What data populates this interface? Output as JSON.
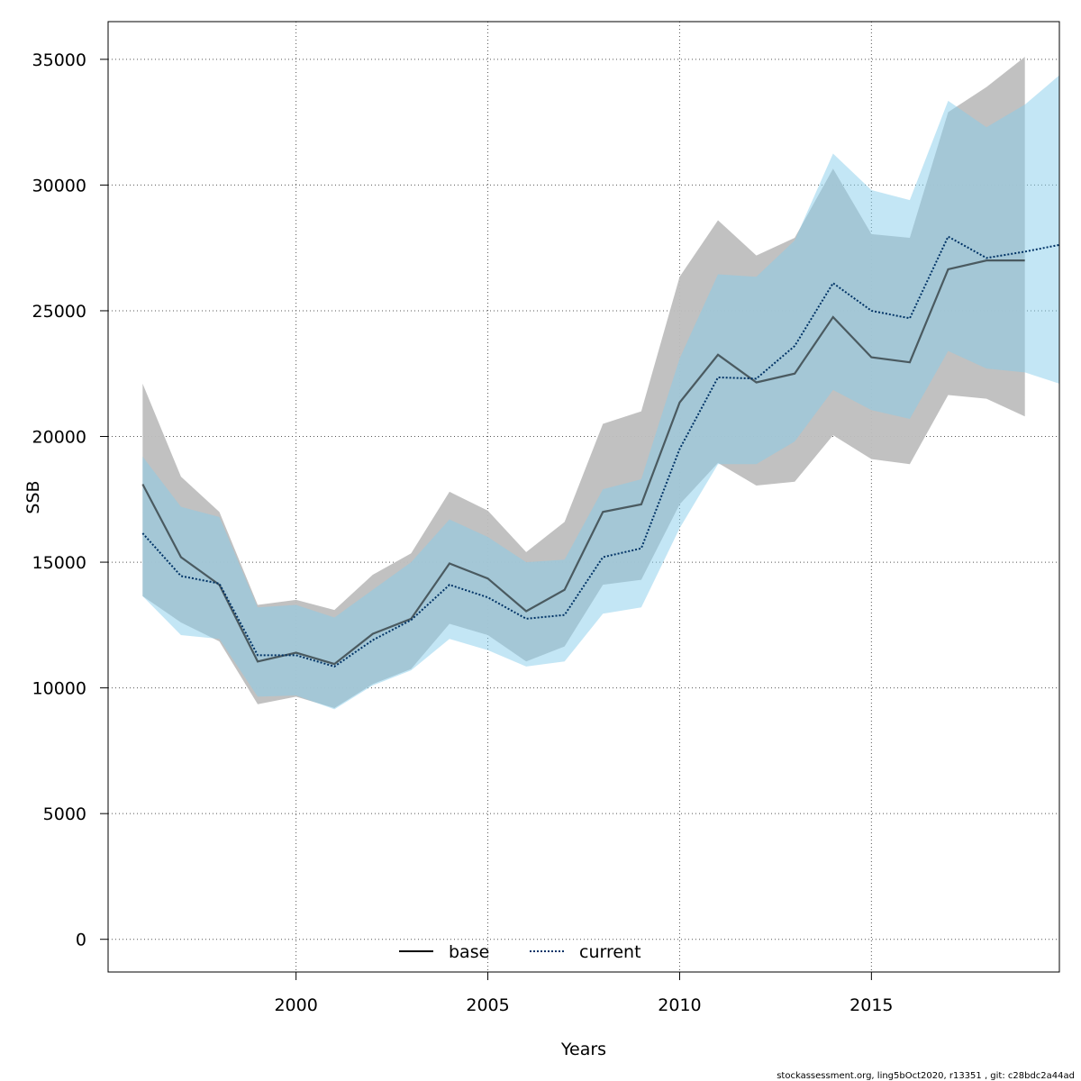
{
  "chart_data": {
    "type": "line",
    "xlabel": "Years",
    "ylabel": "SSB",
    "xlim": [
      1995.1,
      2019.9
    ],
    "ylim": [
      -1300,
      36500
    ],
    "x_ticks": [
      2000,
      2005,
      2010,
      2015
    ],
    "y_ticks": [
      0,
      5000,
      10000,
      15000,
      20000,
      25000,
      30000,
      35000
    ],
    "grid": true,
    "legend_position": "bottom-center",
    "series": [
      {
        "name": "base",
        "line_style": "solid",
        "line_color": "#000000",
        "band_color": "#bebebe",
        "x": [
          1996,
          1997,
          1998,
          1999,
          2000,
          2001,
          2002,
          2003,
          2004,
          2005,
          2006,
          2007,
          2008,
          2009,
          2010,
          2011,
          2012,
          2013,
          2014,
          2015,
          2016,
          2017,
          2018,
          2019
        ],
        "values": [
          18100,
          15200,
          14100,
          11050,
          11400,
          10950,
          12150,
          12750,
          14950,
          14350,
          13050,
          13900,
          17000,
          17300,
          21350,
          23250,
          22150,
          22500,
          24750,
          23150,
          22950,
          26650,
          27000,
          27000
        ],
        "lower": [
          13650,
          12600,
          11850,
          9350,
          9650,
          9200,
          10150,
          10750,
          12550,
          12100,
          11050,
          11650,
          14100,
          14300,
          17300,
          18950,
          18050,
          18200,
          20050,
          19100,
          18900,
          21650,
          21500,
          20800
        ],
        "upper": [
          22100,
          18400,
          17000,
          13300,
          13500,
          13100,
          14500,
          15350,
          17800,
          17050,
          15400,
          16600,
          20500,
          21000,
          26350,
          28600,
          27200,
          27900,
          30650,
          28050,
          27900,
          32900,
          33900,
          35100
        ]
      },
      {
        "name": "current",
        "line_style": "dotted",
        "line_color": "#003366",
        "band_color": "#87ceeb",
        "x": [
          1996,
          1997,
          1998,
          1999,
          2000,
          2001,
          2002,
          2003,
          2004,
          2005,
          2006,
          2007,
          2008,
          2009,
          2010,
          2011,
          2012,
          2013,
          2014,
          2015,
          2016,
          2017,
          2018,
          2019,
          2020
        ],
        "values": [
          16150,
          14450,
          14150,
          11300,
          11300,
          10850,
          11900,
          12700,
          14100,
          13600,
          12750,
          12900,
          15200,
          15550,
          19500,
          22350,
          22300,
          23600,
          26100,
          25000,
          24700,
          27950,
          27100,
          27350,
          27650
        ],
        "lower": [
          13650,
          12100,
          11950,
          9650,
          9700,
          9150,
          10100,
          10700,
          11950,
          11500,
          10850,
          11050,
          12950,
          13200,
          16350,
          18900,
          18900,
          19800,
          21850,
          21050,
          20700,
          23400,
          22700,
          22550,
          22050
        ],
        "upper": [
          19200,
          17200,
          16800,
          13200,
          13300,
          12800,
          13900,
          15000,
          16700,
          16000,
          15000,
          15100,
          17900,
          18300,
          23100,
          26450,
          26350,
          27800,
          31250,
          29800,
          29400,
          33350,
          32300,
          33200,
          34500
        ]
      }
    ]
  },
  "footer": {
    "text": "stockassessment.org, ling5bOct2020, r13351 , git: c28bdc2a44ad"
  }
}
